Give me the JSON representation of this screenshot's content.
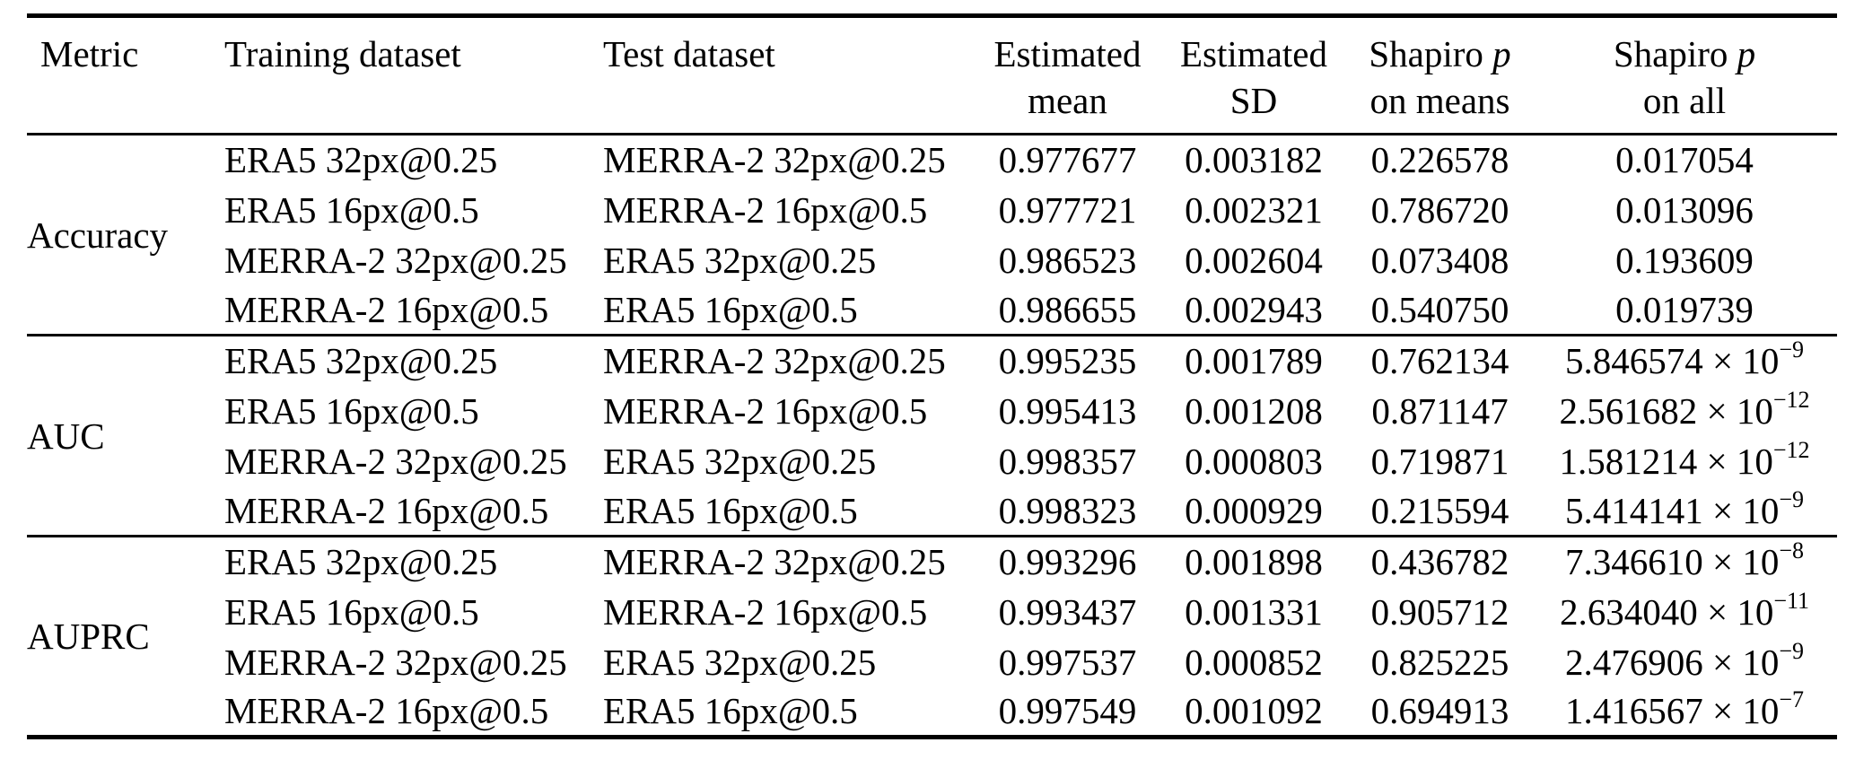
{
  "page": {
    "kind": "paper-table",
    "background_color": "#ffffff",
    "text_color": "#000000",
    "rule_color": "#000000"
  },
  "notation": {
    "times_symbol": "×",
    "base": "10"
  },
  "table": {
    "columns": [
      {
        "id": "metric",
        "align": "left",
        "header_lines": [
          [
            {
              "t": "Metric"
            }
          ]
        ]
      },
      {
        "id": "training",
        "align": "left",
        "header_lines": [
          [
            {
              "t": "Training dataset"
            }
          ]
        ]
      },
      {
        "id": "test",
        "align": "left",
        "header_lines": [
          [
            {
              "t": "Test dataset"
            }
          ]
        ]
      },
      {
        "id": "mean",
        "align": "center",
        "header_lines": [
          [
            {
              "t": "Estimated"
            }
          ],
          [
            {
              "t": "mean"
            }
          ]
        ]
      },
      {
        "id": "sd",
        "align": "center",
        "header_lines": [
          [
            {
              "t": "Estimated"
            }
          ],
          [
            {
              "t": "SD"
            }
          ]
        ]
      },
      {
        "id": "shapiro_means",
        "align": "center",
        "header_lines": [
          [
            {
              "t": "Shapiro "
            },
            {
              "t": "p",
              "italic": true
            }
          ],
          [
            {
              "t": "on means"
            }
          ]
        ]
      },
      {
        "id": "shapiro_all",
        "align": "center",
        "header_lines": [
          [
            {
              "t": "Shapiro "
            },
            {
              "t": "p",
              "italic": true
            }
          ],
          [
            {
              "t": "on all"
            }
          ]
        ]
      }
    ],
    "blocks": [
      {
        "metric": "Accuracy",
        "rows": [
          {
            "training": "ERA5 32px@0.25",
            "test": "MERRA-2 32px@0.25",
            "mean": "0.977677",
            "sd": "0.003182",
            "shapiro_means": "0.226578",
            "shapiro_all": "0.017054"
          },
          {
            "training": "ERA5 16px@0.5",
            "test": "MERRA-2 16px@0.5",
            "mean": "0.977721",
            "sd": "0.002321",
            "shapiro_means": "0.786720",
            "shapiro_all": "0.013096"
          },
          {
            "training": "MERRA-2 32px@0.25",
            "test": "ERA5 32px@0.25",
            "mean": "0.986523",
            "sd": "0.002604",
            "shapiro_means": "0.073408",
            "shapiro_all": "0.193609"
          },
          {
            "training": "MERRA-2 16px@0.5",
            "test": "ERA5 16px@0.5",
            "mean": "0.986655",
            "sd": "0.002943",
            "shapiro_means": "0.540750",
            "shapiro_all": "0.019739"
          }
        ]
      },
      {
        "metric": "AUC",
        "rows": [
          {
            "training": "ERA5 32px@0.25",
            "test": "MERRA-2 32px@0.25",
            "mean": "0.995235",
            "sd": "0.001789",
            "shapiro_means": "0.762134",
            "shapiro_all": {
              "mantissa": "5.846574",
              "exponent": "−9"
            }
          },
          {
            "training": "ERA5 16px@0.5",
            "test": "MERRA-2 16px@0.5",
            "mean": "0.995413",
            "sd": "0.001208",
            "shapiro_means": "0.871147",
            "shapiro_all": {
              "mantissa": "2.561682",
              "exponent": "−12"
            }
          },
          {
            "training": "MERRA-2 32px@0.25",
            "test": "ERA5 32px@0.25",
            "mean": "0.998357",
            "sd": "0.000803",
            "shapiro_means": "0.719871",
            "shapiro_all": {
              "mantissa": "1.581214",
              "exponent": "−12"
            }
          },
          {
            "training": "MERRA-2 16px@0.5",
            "test": "ERA5 16px@0.5",
            "mean": "0.998323",
            "sd": "0.000929",
            "shapiro_means": "0.215594",
            "shapiro_all": {
              "mantissa": "5.414141",
              "exponent": "−9"
            }
          }
        ]
      },
      {
        "metric": "AUPRC",
        "rows": [
          {
            "training": "ERA5 32px@0.25",
            "test": "MERRA-2 32px@0.25",
            "mean": "0.993296",
            "sd": "0.001898",
            "shapiro_means": "0.436782",
            "shapiro_all": {
              "mantissa": "7.346610",
              "exponent": "−8"
            }
          },
          {
            "training": "ERA5 16px@0.5",
            "test": "MERRA-2 16px@0.5",
            "mean": "0.993437",
            "sd": "0.001331",
            "shapiro_means": "0.905712",
            "shapiro_all": {
              "mantissa": "2.634040",
              "exponent": "−11"
            }
          },
          {
            "training": "MERRA-2 32px@0.25",
            "test": "ERA5 32px@0.25",
            "mean": "0.997537",
            "sd": "0.000852",
            "shapiro_means": "0.825225",
            "shapiro_all": {
              "mantissa": "2.476906",
              "exponent": "−9"
            }
          },
          {
            "training": "MERRA-2 16px@0.5",
            "test": "ERA5 16px@0.5",
            "mean": "0.997549",
            "sd": "0.001092",
            "shapiro_means": "0.694913",
            "shapiro_all": {
              "mantissa": "1.416567",
              "exponent": "−7"
            }
          }
        ]
      }
    ]
  }
}
